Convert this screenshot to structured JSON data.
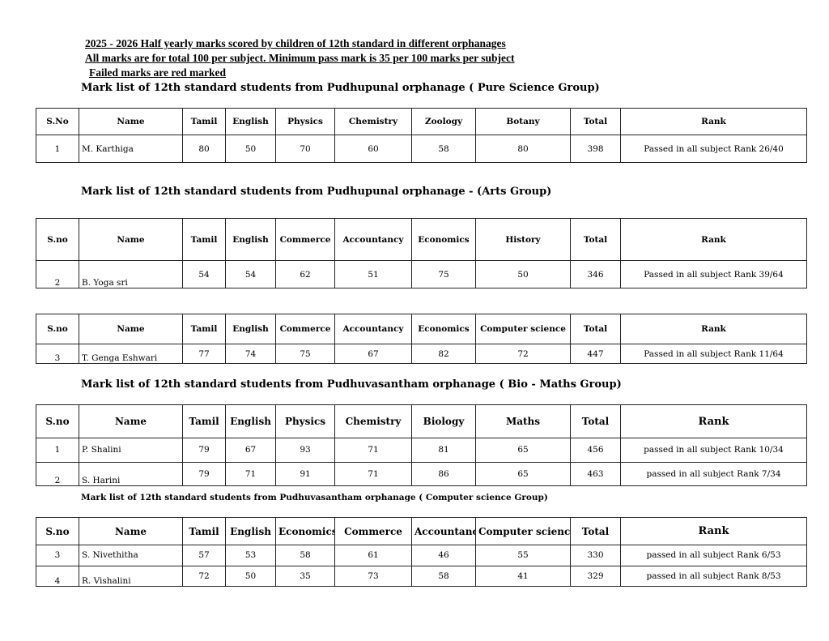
{
  "titles": [
    "2025 - 2026  Half yearly marks scored by children of 12th standard in different orphanages",
    "All marks are for total 100 per subject. Minimum pass mark is 35 per 100 marks per subject",
    "Failed marks are red marked"
  ],
  "sections": [
    {
      "heading": "Mark list of 12th standard students from Pudhupunal orphanage  ( Pure Science Group)",
      "headers": [
        "S.No",
        "Name",
        "Tamil",
        "English",
        "Physics",
        "Chemistry",
        "Zoology",
        "Botany",
        "Total",
        "Rank"
      ],
      "rows": [
        [
          "1",
          "M. Karthiga",
          "80",
          "50",
          "70",
          "60",
          "58",
          "80",
          "398",
          "Passed in all subject Rank 26/40"
        ]
      ]
    },
    {
      "heading": "Mark list of 12th standard students from Pudhupunal orphanage - (Arts Group)",
      "headers": [
        "S.no",
        "Name",
        "Tamil",
        "English",
        "Commerce",
        "Accountancy",
        "Economics",
        "History",
        "Total",
        "Rank"
      ],
      "rows": [
        [
          "2",
          "B. Yoga sri",
          "54",
          "54",
          "62",
          "51",
          "75",
          "50",
          "346",
          "Passed in all subject Rank 39/64"
        ]
      ]
    },
    {
      "heading": "",
      "headers": [
        "S.no",
        "Name",
        "Tamil",
        "English",
        "Commerce",
        "Accountancy",
        "Economics",
        "Computer science",
        "Total",
        "Rank"
      ],
      "rows": [
        [
          "3",
          "T. Genga Eshwari",
          "77",
          "74",
          "75",
          "67",
          "82",
          "72",
          "447",
          "Passed in all subject Rank 11/64"
        ]
      ]
    },
    {
      "heading": "Mark list of 12th standard students from Pudhuvasantham orphanage   ( Bio - Maths Group)",
      "headers": [
        "S.no",
        "Name",
        "Tamil",
        "English",
        "Physics",
        "Chemistry",
        "Biology",
        "Maths",
        "Total",
        "Rank"
      ],
      "rows": [
        [
          "1",
          "P. Shalini",
          "79",
          "67",
          "93",
          "71",
          "81",
          "65",
          "456",
          "passed in all subject Rank 10/34"
        ],
        [
          "2",
          "S. Harini",
          "79",
          "71",
          "91",
          "71",
          "86",
          "65",
          "463",
          "passed in all subject Rank 7/34"
        ]
      ]
    },
    {
      "heading": "Mark list of 12th standard students from Pudhuvasantham orphanage   ( Computer science Group)",
      "headers": [
        "S.no",
        "Name",
        "Tamil",
        "English",
        "Economics",
        "Commerce",
        "Accountancy",
        "Computer  science",
        "Total",
        "Rank"
      ],
      "rows": [
        [
          "3",
          "S. Nivethitha",
          "57",
          "53",
          "58",
          "61",
          "46",
          "55",
          "330",
          "passed in all subject Rank 6/53"
        ],
        [
          "4",
          "R. Vishalini",
          "72",
          "50",
          "35",
          "73",
          "58",
          "41",
          "329",
          "passed in all subject Rank 8/53"
        ]
      ]
    }
  ]
}
